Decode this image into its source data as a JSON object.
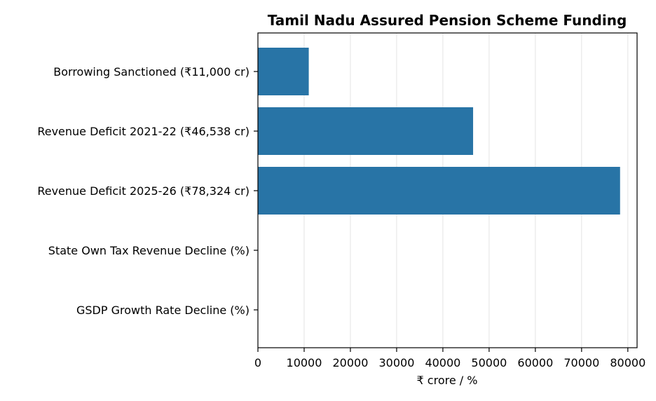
{
  "chart_data": {
    "type": "bar",
    "orientation": "horizontal",
    "title": "Tamil Nadu Assured Pension Scheme Funding",
    "xlabel": "₹ crore / %",
    "ylabel": "",
    "categories": [
      "Borrowing Sanctioned (₹11,000 cr)",
      "Revenue Deficit 2021-22 (₹46,538 cr)",
      "Revenue Deficit 2025-26 (₹78,324 cr)",
      "State Own Tax Revenue Decline (%)",
      "GSDP Growth Rate Decline (%)"
    ],
    "values": [
      11000,
      46538,
      78324,
      0,
      0
    ],
    "xlim": [
      0,
      82000
    ],
    "xticks": [
      0,
      10000,
      20000,
      30000,
      40000,
      50000,
      60000,
      70000,
      80000
    ],
    "grid": "x-axis vertical lines",
    "bar_color": "#2874a6"
  }
}
